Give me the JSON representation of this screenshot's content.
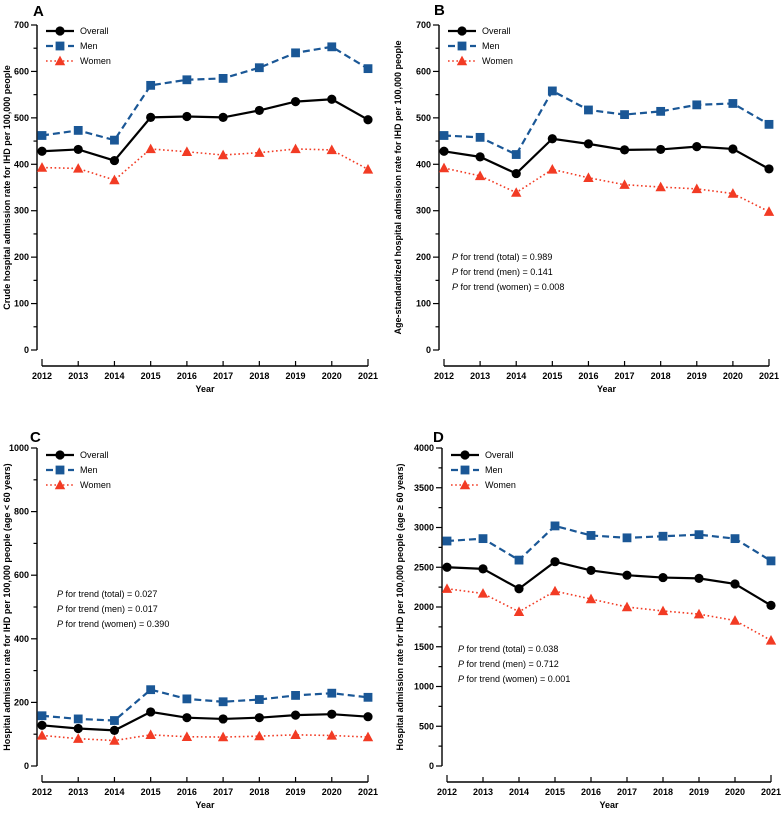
{
  "figure_title": "",
  "colors": {
    "overall": "#000000",
    "men": "#1a5796",
    "women": "#f23b24"
  },
  "chart_data": [
    {
      "type": "line",
      "panel_label": "A",
      "xlabel": "Year",
      "ylabel": "Crude hospital admission rate for IHD per 100,000 people",
      "x": [
        2012,
        2013,
        2014,
        2015,
        2016,
        2017,
        2018,
        2019,
        2020,
        2021
      ],
      "ylim": [
        0,
        700
      ],
      "ytick_major": 100,
      "ytick_minor": 50,
      "legend_position": "top-left",
      "series": [
        {
          "name": "Overall",
          "color": "#000000",
          "marker": "circle",
          "line_style": "solid",
          "values": [
            428,
            432,
            408,
            501,
            503,
            501,
            516,
            535,
            540,
            496
          ]
        },
        {
          "name": "Men",
          "color": "#1a5796",
          "marker": "square",
          "line_style": "dashed",
          "values": [
            462,
            473,
            452,
            570,
            582,
            585,
            608,
            640,
            653,
            606
          ]
        },
        {
          "name": "Women",
          "color": "#f23b24",
          "marker": "triangle",
          "line_style": "dotted",
          "values": [
            393,
            391,
            366,
            433,
            427,
            420,
            425,
            433,
            431,
            389
          ]
        }
      ],
      "annotations": {
        "lines": [],
        "anchor": {
          "x": 0,
          "y": 0
        }
      }
    },
    {
      "type": "line",
      "panel_label": "B",
      "xlabel": "Year",
      "ylabel": "Age-standardized hospital admission rate for IHD per 100,000 people",
      "x": [
        2012,
        2013,
        2014,
        2015,
        2016,
        2017,
        2018,
        2019,
        2020,
        2021
      ],
      "ylim": [
        0,
        700
      ],
      "ytick_major": 100,
      "ytick_minor": 50,
      "legend_position": "top-left",
      "series": [
        {
          "name": "Overall",
          "color": "#000000",
          "marker": "circle",
          "line_style": "solid",
          "values": [
            428,
            416,
            380,
            455,
            444,
            431,
            432,
            438,
            433,
            390
          ]
        },
        {
          "name": "Men",
          "color": "#1a5796",
          "marker": "square",
          "line_style": "dashed",
          "values": [
            462,
            458,
            421,
            558,
            517,
            507,
            514,
            528,
            531,
            486
          ]
        },
        {
          "name": "Women",
          "color": "#f23b24",
          "marker": "triangle",
          "line_style": "dotted",
          "values": [
            392,
            375,
            339,
            389,
            371,
            356,
            351,
            347,
            337,
            298
          ]
        }
      ],
      "annotations": {
        "lines": [
          "P for trend (total) = 0.989",
          "P for trend (men) = 0.141",
          "P for trend (women) = 0.008"
        ],
        "anchor": {
          "x": 61,
          "y": 260
        }
      }
    },
    {
      "type": "line",
      "panel_label": "C",
      "xlabel": "Year",
      "ylabel": "Hospital admission rate for IHD per 100,000 people (age < 60 years)",
      "x": [
        2012,
        2013,
        2014,
        2015,
        2016,
        2017,
        2018,
        2019,
        2020,
        2021
      ],
      "ylim": [
        0,
        1000
      ],
      "ytick_major": 200,
      "ytick_minor": 100,
      "legend_position": "top-left",
      "series": [
        {
          "name": "Overall",
          "color": "#000000",
          "marker": "circle",
          "line_style": "solid",
          "values": [
            128,
            118,
            112,
            170,
            152,
            148,
            152,
            160,
            163,
            155
          ]
        },
        {
          "name": "Men",
          "color": "#1a5796",
          "marker": "square",
          "line_style": "dashed",
          "values": [
            158,
            148,
            143,
            240,
            211,
            202,
            209,
            222,
            229,
            216
          ]
        },
        {
          "name": "Women",
          "color": "#f23b24",
          "marker": "triangle",
          "line_style": "dotted",
          "values": [
            96,
            86,
            80,
            98,
            92,
            91,
            94,
            98,
            96,
            91
          ]
        }
      ],
      "annotations": {
        "lines": [
          "P for trend (total) = 0.027",
          "P for trend (men) = 0.017",
          "P for trend (women) = 0.390"
        ],
        "anchor": {
          "x": 57,
          "y": 191
        }
      }
    },
    {
      "type": "line",
      "panel_label": "D",
      "xlabel": "Year",
      "ylabel": "Hospital admission rate for IHD per 100,000 people (age ≥ 60 years)",
      "x": [
        2012,
        2013,
        2014,
        2015,
        2016,
        2017,
        2018,
        2019,
        2020,
        2021
      ],
      "ylim": [
        0,
        4000
      ],
      "ytick_major": 500,
      "ytick_minor": 250,
      "legend_position": "top-left",
      "series": [
        {
          "name": "Overall",
          "color": "#000000",
          "marker": "circle",
          "line_style": "solid",
          "values": [
            2500,
            2480,
            2230,
            2570,
            2460,
            2400,
            2370,
            2360,
            2290,
            2020
          ]
        },
        {
          "name": "Men",
          "color": "#1a5796",
          "marker": "square",
          "line_style": "dashed",
          "values": [
            2830,
            2860,
            2590,
            3020,
            2900,
            2870,
            2890,
            2910,
            2860,
            2580
          ]
        },
        {
          "name": "Women",
          "color": "#f23b24",
          "marker": "triangle",
          "line_style": "dotted",
          "values": [
            2230,
            2170,
            1940,
            2200,
            2100,
            2000,
            1950,
            1910,
            1830,
            1580
          ]
        }
      ],
      "annotations": {
        "lines": [
          "P for trend (total) = 0.038",
          "P for trend (men) = 0.712",
          "P for trend (women) = 0.001"
        ],
        "anchor": {
          "x": 67,
          "y": 246
        }
      }
    }
  ]
}
